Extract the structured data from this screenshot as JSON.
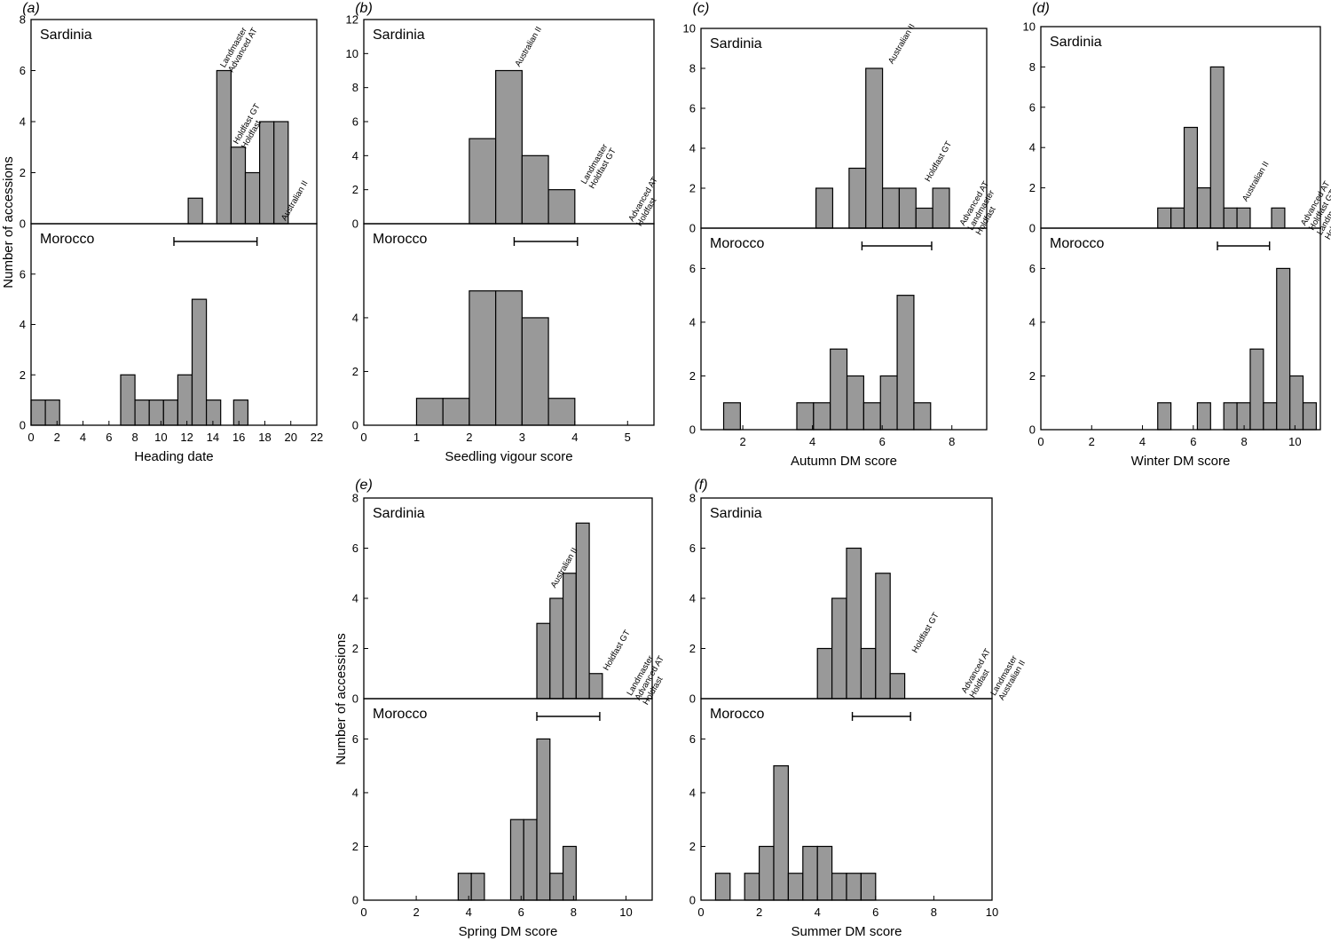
{
  "chart_data": [
    {
      "type": "bar",
      "panel": "(a)",
      "xlabel": "Heading date",
      "ylabel": "Number of accessions",
      "xlim": [
        0,
        22
      ],
      "xticks": [
        0,
        2,
        4,
        6,
        8,
        10,
        12,
        14,
        16,
        18,
        20,
        22
      ],
      "bin_width": 1.1,
      "top": {
        "label": "Sardinia",
        "ylim": [
          0,
          8
        ],
        "yticks": [
          0,
          2,
          4,
          6,
          8
        ],
        "bins": [
          [
            12.1,
            1
          ],
          [
            14.3,
            6
          ],
          [
            15.4,
            3
          ],
          [
            16.5,
            2
          ],
          [
            17.6,
            4
          ],
          [
            18.7,
            4
          ]
        ],
        "annotations": [
          {
            "x": 14.9,
            "y": 6.1,
            "lines": [
              "Landmaster",
              "Advanced AT"
            ]
          },
          {
            "x": 15.9,
            "y": 3.1,
            "lines": [
              "Holdfast GT",
              "Holdfast"
            ]
          },
          {
            "x": 19.6,
            "y": 0.1,
            "lines": [
              "Australian II"
            ]
          }
        ]
      },
      "bottom": {
        "label": "Morocco",
        "ylim": [
          0,
          8
        ],
        "yticks": [
          0,
          2,
          4,
          6
        ],
        "bins": [
          [
            0,
            1
          ],
          [
            1.1,
            1
          ],
          [
            6.9,
            2
          ],
          [
            8.0,
            1
          ],
          [
            9.1,
            1
          ],
          [
            10.2,
            1
          ],
          [
            11.3,
            2
          ],
          [
            12.4,
            5
          ],
          [
            13.5,
            1
          ],
          [
            15.6,
            1
          ]
        ],
        "errbar": [
          11.0,
          17.4
        ]
      }
    },
    {
      "type": "bar",
      "panel": "(b)",
      "xlabel": "Seedling vigour score",
      "xlim": [
        0,
        5.5
      ],
      "xticks": [
        0,
        1,
        2,
        3,
        4,
        5
      ],
      "bin_width": 0.5,
      "top": {
        "label": "Sardinia",
        "ylim": [
          0,
          12
        ],
        "yticks": [
          0,
          2,
          4,
          6,
          8,
          10,
          12
        ],
        "bins": [
          [
            2.0,
            5
          ],
          [
            2.5,
            9
          ],
          [
            3.0,
            4
          ],
          [
            3.5,
            2
          ]
        ],
        "annotations": [
          {
            "x": 2.95,
            "y": 9.2,
            "lines": [
              "Australian II"
            ]
          },
          {
            "x": 4.2,
            "y": 2.3,
            "lines": [
              "Landmaster",
              "Holdfast GT"
            ]
          },
          {
            "x": 5.1,
            "y": 0.1,
            "lines": [
              "Advanced AT",
              "Holdfast"
            ]
          }
        ]
      },
      "bottom": {
        "label": "Morocco",
        "ylim": [
          0,
          7.5
        ],
        "yticks": [
          0,
          2,
          4
        ],
        "bins": [
          [
            1.0,
            1
          ],
          [
            1.5,
            1
          ],
          [
            2.0,
            5
          ],
          [
            2.5,
            5
          ],
          [
            3.0,
            4
          ],
          [
            3.5,
            1
          ]
        ],
        "errbar": [
          2.85,
          4.05
        ]
      }
    },
    {
      "type": "bar",
      "panel": "(c)",
      "xlabel": "Autumn DM score",
      "xlim": [
        0.8,
        9
      ],
      "xticks": [
        2,
        4,
        6,
        8
      ],
      "bin_width": 0.48,
      "top": {
        "label": "Sardinia",
        "ylim": [
          0,
          10
        ],
        "yticks": [
          0,
          2,
          4,
          6,
          8,
          10
        ],
        "bins": [
          [
            4.1,
            2
          ],
          [
            5.05,
            3
          ],
          [
            5.53,
            8
          ],
          [
            6.01,
            2
          ],
          [
            6.49,
            2
          ],
          [
            6.97,
            1
          ],
          [
            7.45,
            2
          ]
        ],
        "annotations": [
          {
            "x": 6.3,
            "y": 8.2,
            "lines": [
              "Australian II"
            ]
          },
          {
            "x": 7.35,
            "y": 2.3,
            "lines": [
              "Holdfast GT"
            ]
          },
          {
            "x": 8.35,
            "y": 0.1,
            "lines": [
              "Advanced AT",
              "Landmaster",
              "Holdfast"
            ]
          }
        ]
      },
      "bottom": {
        "label": "Morocco",
        "ylim": [
          0,
          7.5
        ],
        "yticks": [
          0,
          2,
          4,
          6
        ],
        "bins": [
          [
            1.45,
            1
          ],
          [
            3.55,
            1
          ],
          [
            4.03,
            1
          ],
          [
            4.51,
            3
          ],
          [
            4.99,
            2
          ],
          [
            5.47,
            1
          ],
          [
            5.95,
            2
          ],
          [
            6.43,
            5
          ],
          [
            6.91,
            1
          ]
        ],
        "errbar": [
          5.42,
          7.42
        ]
      }
    },
    {
      "type": "bar",
      "panel": "(d)",
      "xlabel": "Winter DM score",
      "xlim": [
        0,
        11
      ],
      "xticks": [
        0,
        2,
        4,
        6,
        8,
        10
      ],
      "bin_width": 0.52,
      "top": {
        "label": "Sardinia",
        "ylim": [
          0,
          10
        ],
        "yticks": [
          0,
          2,
          4,
          6,
          8,
          10
        ],
        "bins": [
          [
            4.6,
            1
          ],
          [
            5.12,
            1
          ],
          [
            5.64,
            5
          ],
          [
            6.16,
            2
          ],
          [
            6.68,
            8
          ],
          [
            7.2,
            1
          ],
          [
            7.72,
            1
          ],
          [
            9.08,
            1
          ]
        ],
        "annotations": [
          {
            "x": 8.1,
            "y": 1.3,
            "lines": [
              "Australian II"
            ]
          },
          {
            "x": 10.4,
            "y": 0.1,
            "lines": [
              "Advanced AT",
              "Holdfast GT",
              "Landmaster",
              "Holdfast"
            ]
          }
        ]
      },
      "bottom": {
        "label": "Morocco",
        "ylim": [
          0,
          7.5
        ],
        "yticks": [
          0,
          2,
          4,
          6
        ],
        "bins": [
          [
            4.6,
            1
          ],
          [
            6.16,
            1
          ],
          [
            7.2,
            1
          ],
          [
            7.72,
            1
          ],
          [
            8.24,
            3
          ],
          [
            8.76,
            1
          ],
          [
            9.28,
            6
          ],
          [
            9.8,
            2
          ],
          [
            10.32,
            1
          ]
        ],
        "errbar": [
          6.95,
          9.0
        ]
      }
    },
    {
      "type": "bar",
      "panel": "(e)",
      "xlabel": "Spring DM score",
      "ylabel": "Number of accessions",
      "xlim": [
        0,
        11
      ],
      "xticks": [
        0,
        2,
        4,
        6,
        8,
        10
      ],
      "bin_width": 0.5,
      "top": {
        "label": "Sardinia",
        "ylim": [
          0,
          8
        ],
        "yticks": [
          0,
          2,
          4,
          6,
          8
        ],
        "bins": [
          [
            6.6,
            3
          ],
          [
            7.1,
            4
          ],
          [
            7.6,
            5
          ],
          [
            8.1,
            7
          ],
          [
            8.6,
            1
          ]
        ],
        "annotations": [
          {
            "x": 7.3,
            "y": 4.4,
            "lines": [
              "Australian II"
            ]
          },
          {
            "x": 9.3,
            "y": 1.1,
            "lines": [
              "Holdfast GT"
            ]
          },
          {
            "x": 10.2,
            "y": 0.1,
            "lines": [
              "Landmaster",
              "Advanced AT",
              "Holdfast"
            ]
          }
        ]
      },
      "bottom": {
        "label": "Morocco",
        "ylim": [
          0,
          7.5
        ],
        "yticks": [
          0,
          2,
          4,
          6
        ],
        "bins": [
          [
            3.6,
            1
          ],
          [
            4.1,
            1
          ],
          [
            5.6,
            3
          ],
          [
            6.1,
            3
          ],
          [
            6.6,
            6
          ],
          [
            7.1,
            1
          ],
          [
            7.6,
            2
          ]
        ],
        "errbar": [
          6.6,
          9.0
        ]
      }
    },
    {
      "type": "bar",
      "panel": "(f)",
      "xlabel": "Summer DM score",
      "xlim": [
        0,
        10
      ],
      "xticks": [
        0,
        2,
        4,
        6,
        8,
        10
      ],
      "bin_width": 0.5,
      "top": {
        "label": "Sardinia",
        "ylim": [
          0,
          8
        ],
        "yticks": [
          0,
          2,
          4,
          6,
          8
        ],
        "bins": [
          [
            4.0,
            2
          ],
          [
            4.5,
            4
          ],
          [
            5.0,
            6
          ],
          [
            5.5,
            2
          ],
          [
            6.0,
            5
          ],
          [
            6.5,
            1
          ]
        ],
        "annotations": [
          {
            "x": 7.4,
            "y": 1.8,
            "lines": [
              "Holdfast GT"
            ]
          },
          {
            "x": 9.1,
            "y": 0.2,
            "lines": [
              "Advanced AT",
              "Holdfast"
            ]
          },
          {
            "x": 10.1,
            "y": 0.1,
            "lines": [
              "Landmaster",
              "Australian II"
            ]
          }
        ]
      },
      "bottom": {
        "label": "Morocco",
        "ylim": [
          0,
          7.5
        ],
        "yticks": [
          0,
          2,
          4,
          6
        ],
        "bins": [
          [
            0.5,
            1
          ],
          [
            1.5,
            1
          ],
          [
            2.0,
            2
          ],
          [
            2.5,
            5
          ],
          [
            3.0,
            1
          ],
          [
            3.5,
            2
          ],
          [
            4.0,
            2
          ],
          [
            4.5,
            1
          ],
          [
            5.0,
            1
          ],
          [
            5.5,
            1
          ]
        ],
        "errbar": [
          5.2,
          7.2
        ]
      }
    }
  ]
}
